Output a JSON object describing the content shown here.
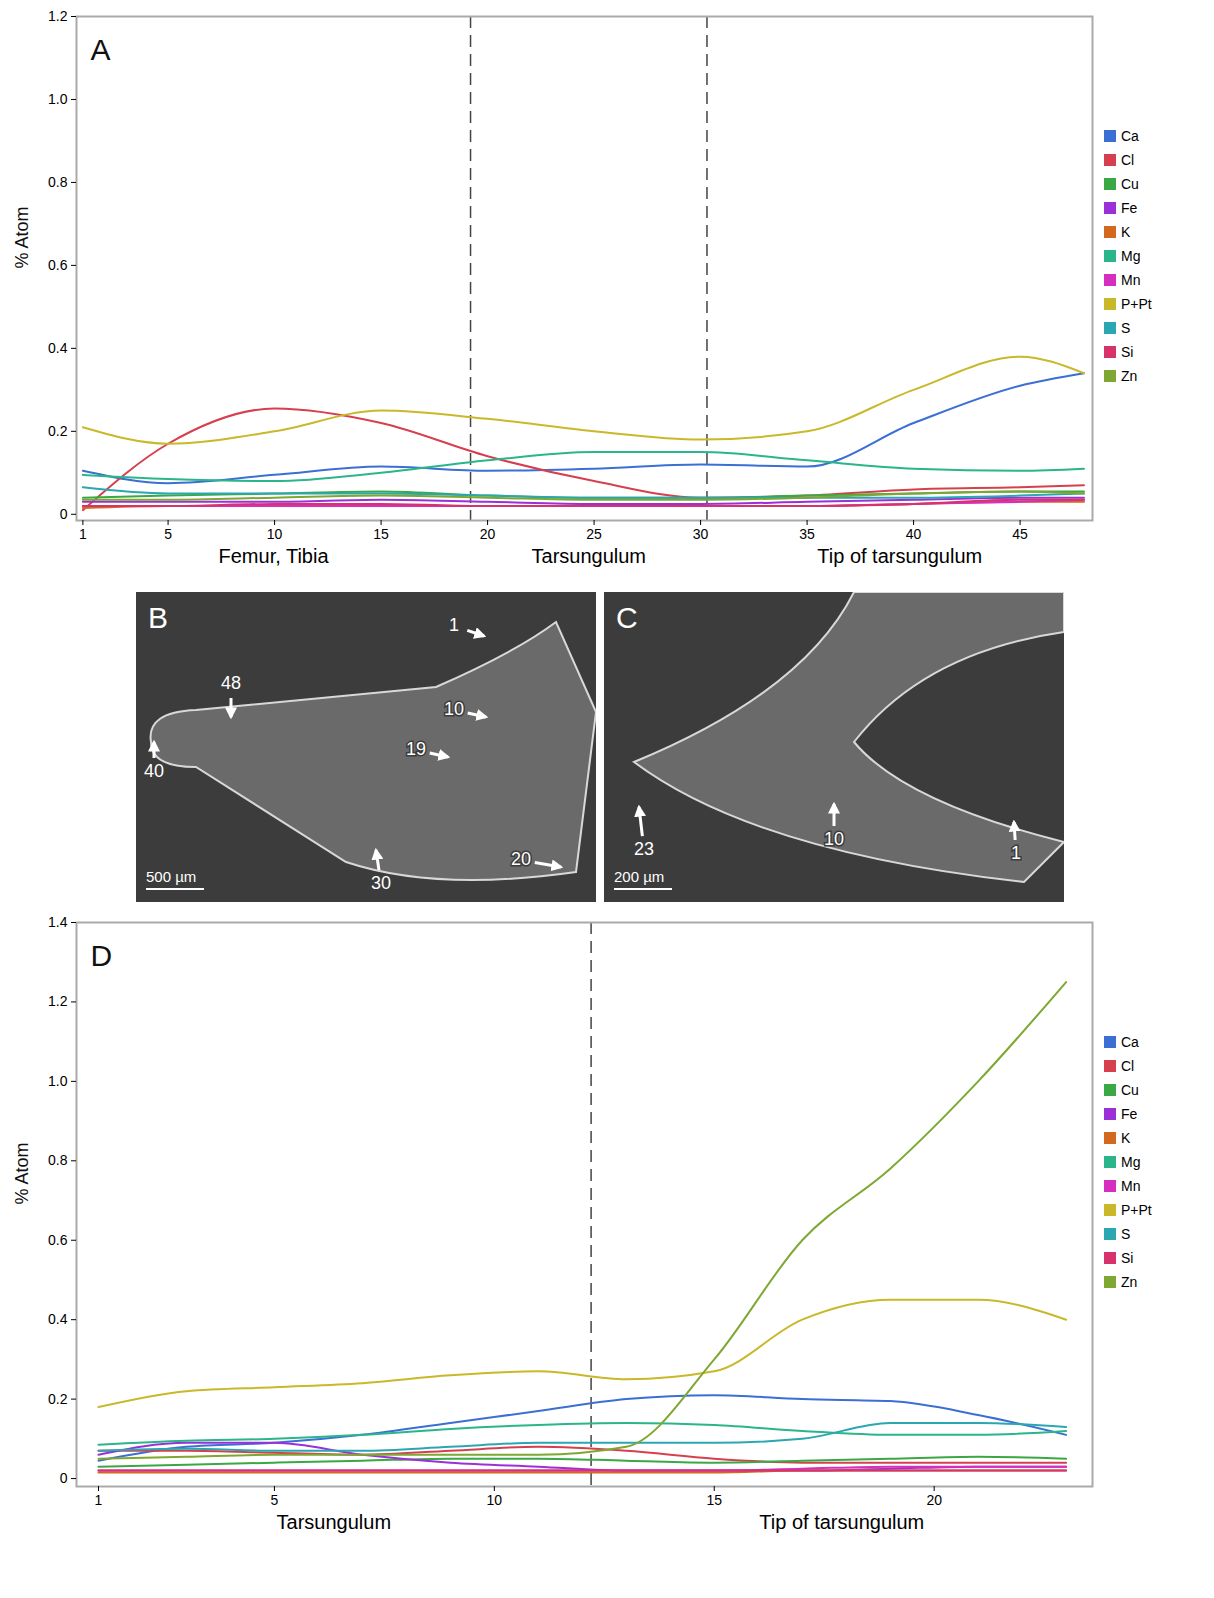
{
  "chart_data": [
    {
      "type": "line",
      "panel": "A",
      "y_label": "% Atom",
      "x": [
        1,
        5,
        10,
        15,
        20,
        25,
        30,
        35,
        40,
        45,
        48
      ],
      "xlim": [
        0.7,
        48.4
      ],
      "xticks": [
        1,
        5,
        10,
        15,
        20,
        25,
        30,
        35,
        40,
        45
      ],
      "ylim": [
        -0.015,
        1.2
      ],
      "yticks": [
        0,
        0.2,
        0.4,
        0.6,
        0.8,
        {
          "value": 1,
          "label": "1.0"
        },
        1.2
      ],
      "vlines": [
        19.2,
        30.3
      ],
      "x_group_labels": [
        "Femur, Tibia",
        "Tarsungulum",
        "Tip of tarsungulum"
      ],
      "legend": "right",
      "series": [
        {
          "name": "Ca",
          "color": "#3b6fd4",
          "values": [
            0.105,
            0.075,
            0.095,
            0.115,
            0.105,
            0.11,
            0.12,
            0.115,
            0.22,
            0.31,
            0.34
          ]
        },
        {
          "name": "Cl",
          "color": "#d6404e",
          "values": [
            0.01,
            0.17,
            0.255,
            0.22,
            0.14,
            0.08,
            0.04,
            0.045,
            0.06,
            0.065,
            0.07
          ]
        },
        {
          "name": "Cu",
          "color": "#3aa845",
          "values": [
            0.04,
            0.045,
            0.05,
            0.055,
            0.045,
            0.04,
            0.04,
            0.045,
            0.05,
            0.055,
            0.055
          ]
        },
        {
          "name": "Fe",
          "color": "#9b30d9",
          "values": [
            0.03,
            0.03,
            0.03,
            0.035,
            0.03,
            0.025,
            0.025,
            0.03,
            0.035,
            0.04,
            0.04
          ]
        },
        {
          "name": "K",
          "color": "#d2691e",
          "values": [
            0.015,
            0.02,
            0.02,
            0.02,
            0.02,
            0.02,
            0.02,
            0.02,
            0.025,
            0.03,
            0.03
          ]
        },
        {
          "name": "Mg",
          "color": "#2ab58a",
          "values": [
            0.095,
            0.085,
            0.08,
            0.1,
            0.13,
            0.15,
            0.15,
            0.13,
            0.11,
            0.105,
            0.11
          ]
        },
        {
          "name": "Mn",
          "color": "#d62fc0",
          "values": [
            0.02,
            0.02,
            0.02,
            0.02,
            0.02,
            0.02,
            0.02,
            0.02,
            0.025,
            0.03,
            0.035
          ]
        },
        {
          "name": "P+Pt",
          "color": "#c9b82a",
          "values": [
            0.21,
            0.17,
            0.2,
            0.25,
            0.23,
            0.2,
            0.18,
            0.2,
            0.3,
            0.38,
            0.34
          ]
        },
        {
          "name": "S",
          "color": "#2aa7b0",
          "values": [
            0.065,
            0.05,
            0.05,
            0.05,
            0.045,
            0.04,
            0.04,
            0.04,
            0.04,
            0.045,
            0.05
          ]
        },
        {
          "name": "Si",
          "color": "#d6336c",
          "values": [
            0.02,
            0.02,
            0.025,
            0.025,
            0.02,
            0.02,
            0.02,
            0.02,
            0.025,
            0.035,
            0.035
          ]
        },
        {
          "name": "Zn",
          "color": "#7ea832",
          "values": [
            0.035,
            0.035,
            0.04,
            0.045,
            0.04,
            0.035,
            0.035,
            0.04,
            0.05,
            0.055,
            0.05
          ]
        }
      ]
    },
    {
      "type": "line",
      "panel": "D",
      "y_label": "% Atom",
      "x": [
        1,
        3,
        5,
        7,
        9,
        11,
        13,
        15,
        17,
        19,
        21,
        23
      ],
      "xlim": [
        0.5,
        23.6
      ],
      "xticks": [
        1,
        5,
        10,
        15,
        20
      ],
      "ylim": [
        -0.02,
        1.4
      ],
      "yticks": [
        0,
        0.2,
        0.4,
        0.6,
        0.8,
        {
          "value": 1,
          "label": "1.0"
        },
        1.2,
        1.4
      ],
      "vlines": [
        12.2
      ],
      "x_group_labels": [
        "Tarsungulum",
        "Tip of tarsungulum"
      ],
      "legend": "right",
      "series": [
        {
          "name": "Ca",
          "color": "#3b6fd4",
          "values": [
            0.045,
            0.08,
            0.09,
            0.11,
            0.14,
            0.17,
            0.2,
            0.21,
            0.2,
            0.195,
            0.16,
            0.11
          ]
        },
        {
          "name": "Cl",
          "color": "#d6404e",
          "values": [
            0.07,
            0.07,
            0.065,
            0.06,
            0.07,
            0.08,
            0.07,
            0.05,
            0.04,
            0.04,
            0.04,
            0.04
          ]
        },
        {
          "name": "Cu",
          "color": "#3aa845",
          "values": [
            0.03,
            0.035,
            0.04,
            0.045,
            0.05,
            0.05,
            0.045,
            0.04,
            0.045,
            0.05,
            0.055,
            0.05
          ]
        },
        {
          "name": "Fe",
          "color": "#9b30d9",
          "values": [
            0.06,
            0.09,
            0.09,
            0.06,
            0.04,
            0.03,
            0.02,
            0.02,
            0.02,
            0.025,
            0.03,
            0.03
          ]
        },
        {
          "name": "K",
          "color": "#d2691e",
          "values": [
            0.015,
            0.015,
            0.015,
            0.015,
            0.015,
            0.015,
            0.015,
            0.015,
            0.02,
            0.02,
            0.02,
            0.02
          ]
        },
        {
          "name": "Mg",
          "color": "#2ab58a",
          "values": [
            0.085,
            0.095,
            0.1,
            0.11,
            0.125,
            0.135,
            0.14,
            0.135,
            0.12,
            0.11,
            0.11,
            0.12
          ]
        },
        {
          "name": "Mn",
          "color": "#d62fc0",
          "values": [
            0.02,
            0.02,
            0.02,
            0.02,
            0.02,
            0.02,
            0.02,
            0.02,
            0.025,
            0.03,
            0.03,
            0.03
          ]
        },
        {
          "name": "P+Pt",
          "color": "#c9b82a",
          "values": [
            0.18,
            0.22,
            0.23,
            0.24,
            0.26,
            0.27,
            0.25,
            0.27,
            0.4,
            0.45,
            0.45,
            0.4
          ]
        },
        {
          "name": "S",
          "color": "#2aa7b0",
          "values": [
            0.07,
            0.075,
            0.07,
            0.07,
            0.08,
            0.09,
            0.09,
            0.09,
            0.1,
            0.14,
            0.14,
            0.13
          ]
        },
        {
          "name": "Si",
          "color": "#d6336c",
          "values": [
            0.02,
            0.02,
            0.02,
            0.02,
            0.02,
            0.02,
            0.02,
            0.02,
            0.02,
            0.02,
            0.02,
            0.02
          ]
        },
        {
          "name": "Zn",
          "color": "#7ea832",
          "values": [
            0.05,
            0.055,
            0.06,
            0.06,
            0.06,
            0.06,
            0.08,
            0.3,
            0.6,
            0.78,
            1.0,
            1.25
          ]
        }
      ]
    }
  ],
  "images": [
    {
      "label": "B",
      "scale_bar": "500 µm",
      "arrows": [
        "1",
        "10",
        "19",
        "48",
        "40",
        "30",
        "20"
      ]
    },
    {
      "label": "C",
      "scale_bar": "200 µm",
      "arrows": [
        "23",
        "10",
        "1"
      ]
    }
  ]
}
